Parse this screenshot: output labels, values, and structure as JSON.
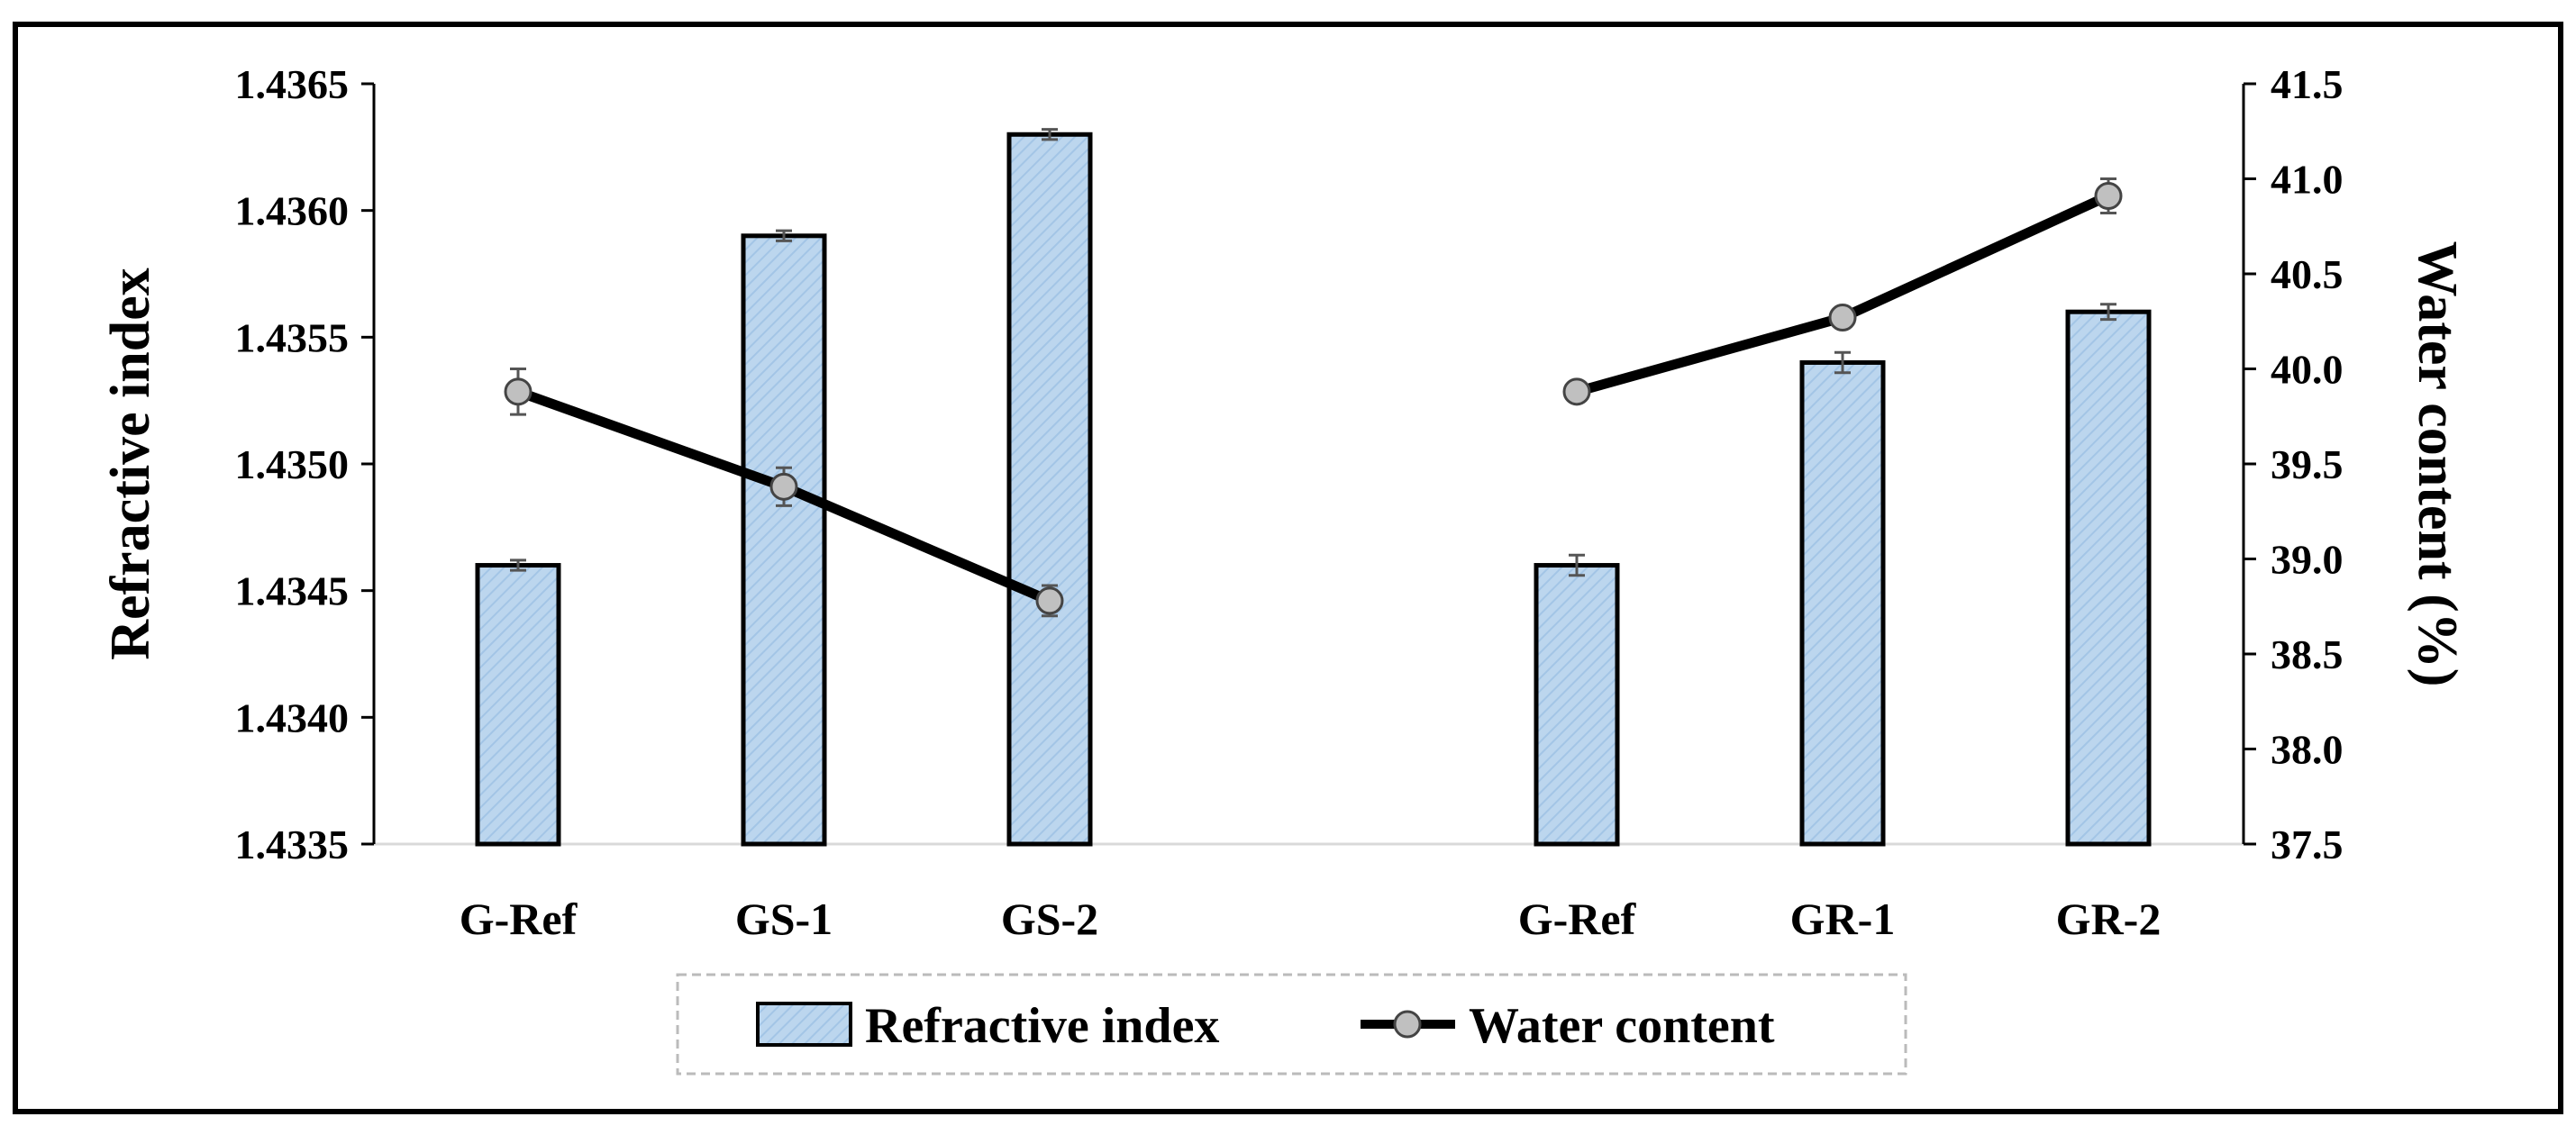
{
  "chart_data": {
    "type": "bar+line",
    "categories": [
      "G-Ref",
      "GS-1",
      "GS-2",
      "G-Ref",
      "GR-1",
      "GR-2"
    ],
    "gap_after_index": 2,
    "series": [
      {
        "name": "Refractive index",
        "type": "bar",
        "axis": "left",
        "values": [
          1.4346,
          1.4359,
          1.4363,
          1.4346,
          1.4354,
          1.4356
        ],
        "errors": [
          2e-05,
          2e-05,
          2e-05,
          4e-05,
          4e-05,
          3e-05
        ]
      },
      {
        "name": "Water content",
        "type": "line",
        "axis": "right",
        "segments": [
          [
            0,
            1,
            2
          ],
          [
            3,
            4,
            5
          ]
        ],
        "values": [
          39.88,
          39.38,
          38.78,
          39.88,
          40.27,
          40.91
        ],
        "errors": [
          0.12,
          0.1,
          0.08,
          0.0,
          0.0,
          0.09
        ]
      }
    ],
    "ylabel": "Refractive index",
    "ylabel_right": "Water content (%)",
    "ylim": [
      1.4335,
      1.4365
    ],
    "ylim_right": [
      37.5,
      41.5
    ],
    "yticks": [
      "1.4335",
      "1.4340",
      "1.4345",
      "1.4350",
      "1.4355",
      "1.4360",
      "1.4365"
    ],
    "yticks_right": [
      "37.5",
      "38.0",
      "38.5",
      "39.0",
      "39.5",
      "40.0",
      "40.5",
      "41.0",
      "41.5"
    ],
    "legend_position": "bottom-center",
    "colors": {
      "bar_fill": "#bcd6ee",
      "bar_hatch": "#a3c5e6",
      "bar_edge": "#000000",
      "line": "#000000",
      "marker_fill": "#c0c0c0",
      "error_bar": "#555555",
      "grid": "#d9d9d9",
      "frame": "#000000",
      "legend_border": "#bbbbbb"
    }
  }
}
